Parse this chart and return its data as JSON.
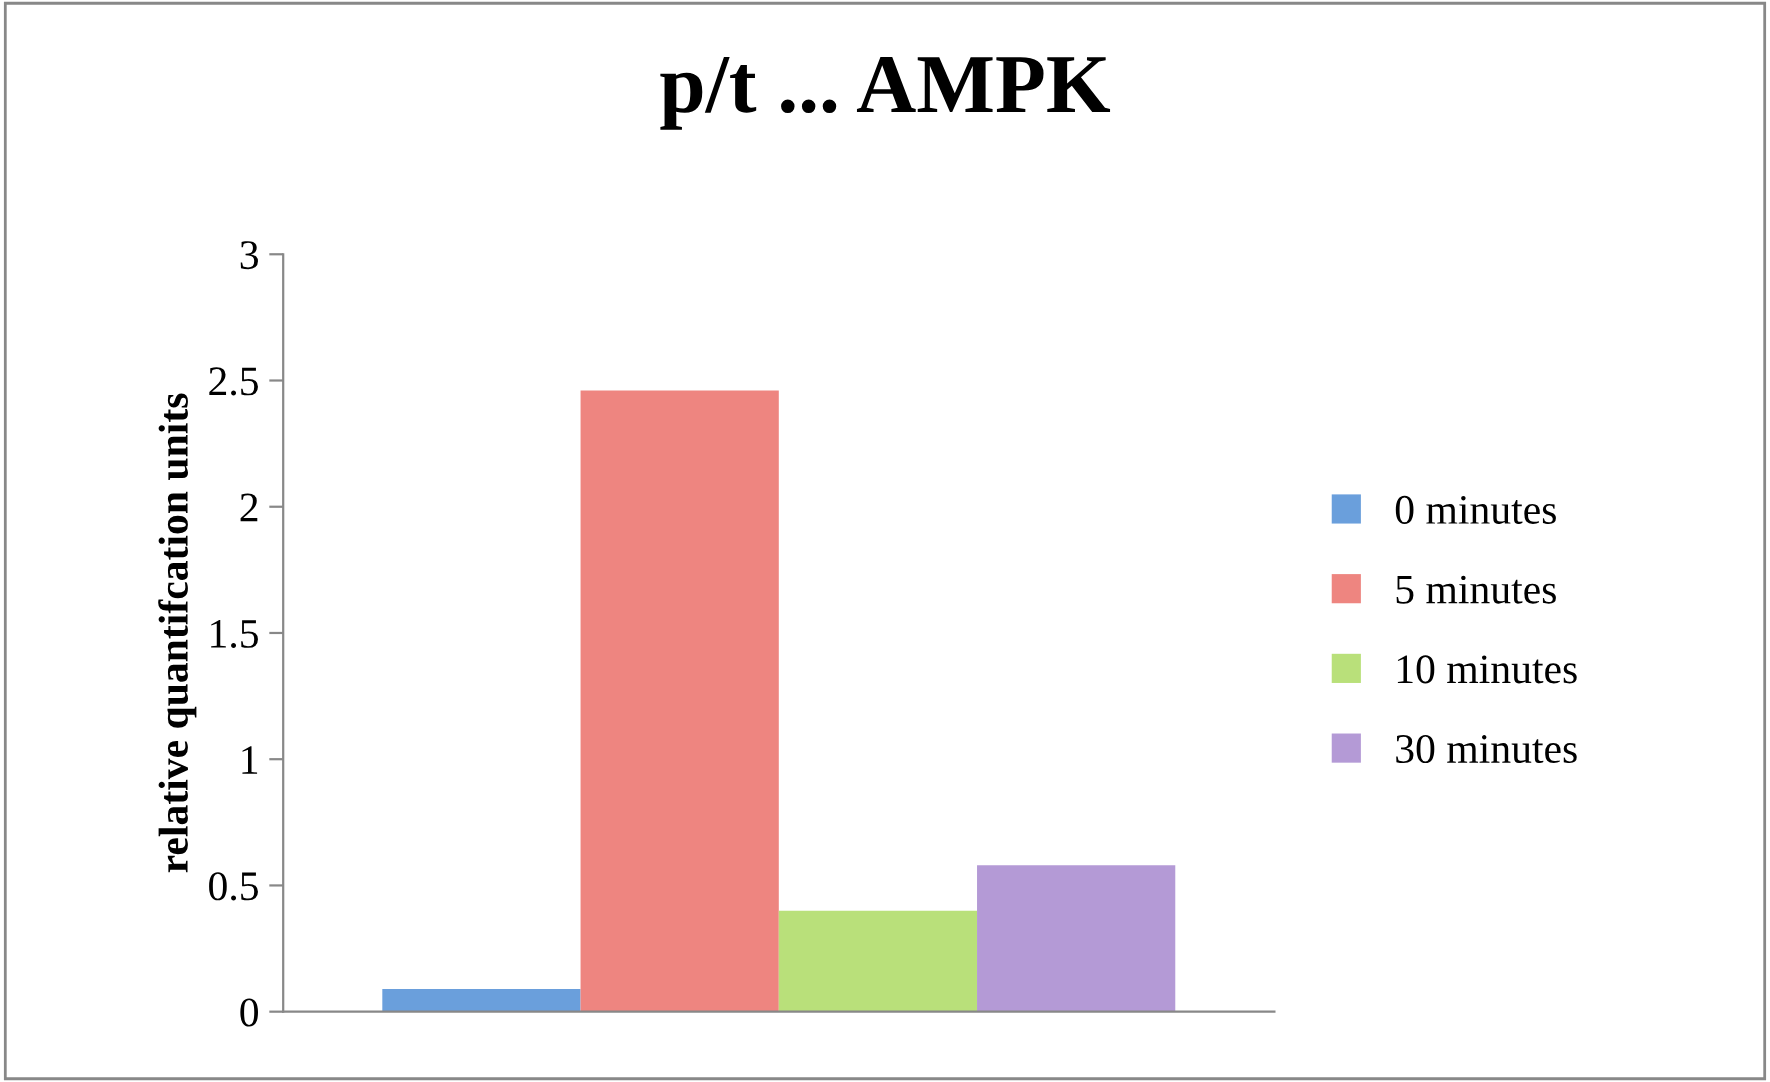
{
  "chart_data": {
    "type": "bar",
    "title": "p/t ... AMPK",
    "ylabel": "relative quantifcation units",
    "categories": [
      null
    ],
    "series": [
      {
        "name": "0 minutes",
        "color": "#6a9fdc",
        "values": [
          0.09
        ]
      },
      {
        "name": "5 minutes",
        "color": "#ee8580",
        "values": [
          2.46
        ]
      },
      {
        "name": "10 minutes",
        "color": "#b9e07a",
        "values": [
          0.4
        ]
      },
      {
        "name": "30 minutes",
        "color": "#b49ad6",
        "values": [
          0.58
        ]
      }
    ],
    "ylim": [
      0,
      3
    ],
    "yticks": [
      0,
      0.5,
      1,
      1.5,
      2,
      2.5,
      3
    ],
    "grid": false,
    "legend": "right",
    "tick_labels": "y"
  }
}
